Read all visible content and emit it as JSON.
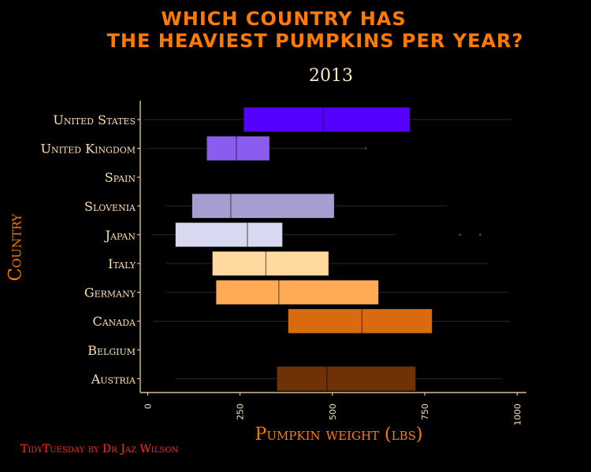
{
  "title_line1": "WHICH COUNTRY HAS",
  "title_line2": "THE HEAVIEST PUMPKINS PER YEAR?",
  "caption": "TidyTuesday by Dr Jaz Wilson",
  "colors": {
    "background": "#000000",
    "title": "#ff7a00",
    "axis": "#ffe0b0",
    "caption": "#ff2a1a"
  },
  "chart_data": {
    "type": "boxplot",
    "title": "WHICH COUNTRY HAS THE HEAVIEST PUMPKINS PER YEAR?",
    "subtitle": "2013",
    "xlabel": "Pumpkin weight (lbs)",
    "ylabel": "Country",
    "xlim": [
      -20,
      1025
    ],
    "xticks": [
      0,
      250,
      500,
      750,
      1000
    ],
    "grid": false,
    "legend": "none",
    "categories": [
      "United States",
      "United Kingdom",
      "Spain",
      "Slovenia",
      "Japan",
      "Italy",
      "Germany",
      "Canada",
      "Belgium",
      "Austria"
    ],
    "series": [
      {
        "country": "United States",
        "whisker_low": -10,
        "q1": 260,
        "median": 475,
        "q3": 710,
        "whisker_high": 985,
        "outliers": [],
        "color": "#5500ff"
      },
      {
        "country": "United Kingdom",
        "whisker_low": -5,
        "q1": 160,
        "median": 240,
        "q3": 330,
        "whisker_high": 590,
        "outliers": [
          590
        ],
        "color": "#8a5cf0"
      },
      {
        "country": "Spain",
        "whisker_low": null,
        "q1": null,
        "median": null,
        "q3": null,
        "whisker_high": null,
        "outliers": [],
        "color": "#9a8bd6"
      },
      {
        "country": "Slovenia",
        "whisker_low": 50,
        "q1": 120,
        "median": 225,
        "q3": 505,
        "whisker_high": 810,
        "outliers": [],
        "color": "#a49fd0"
      },
      {
        "country": "Japan",
        "whisker_low": 10,
        "q1": 75,
        "median": 270,
        "q3": 365,
        "whisker_high": 670,
        "outliers": [
          845,
          900
        ],
        "color": "#d8d8f0"
      },
      {
        "country": "Italy",
        "whisker_low": 50,
        "q1": 175,
        "median": 320,
        "q3": 490,
        "whisker_high": 920,
        "outliers": [],
        "color": "#ffd9a0"
      },
      {
        "country": "Germany",
        "whisker_low": 50,
        "q1": 185,
        "median": 355,
        "q3": 625,
        "whisker_high": 975,
        "outliers": [],
        "color": "#ffab55"
      },
      {
        "country": "Canada",
        "whisker_low": 15,
        "q1": 380,
        "median": 580,
        "q3": 770,
        "whisker_high": 980,
        "outliers": [],
        "color": "#d96a10"
      },
      {
        "country": "Belgium",
        "whisker_low": null,
        "q1": null,
        "median": null,
        "q3": null,
        "whisker_high": null,
        "outliers": [],
        "color": "#a04a10"
      },
      {
        "country": "Austria",
        "whisker_low": 75,
        "q1": 350,
        "median": 485,
        "q3": 725,
        "whisker_high": 960,
        "outliers": [],
        "color": "#6e3108"
      }
    ]
  }
}
